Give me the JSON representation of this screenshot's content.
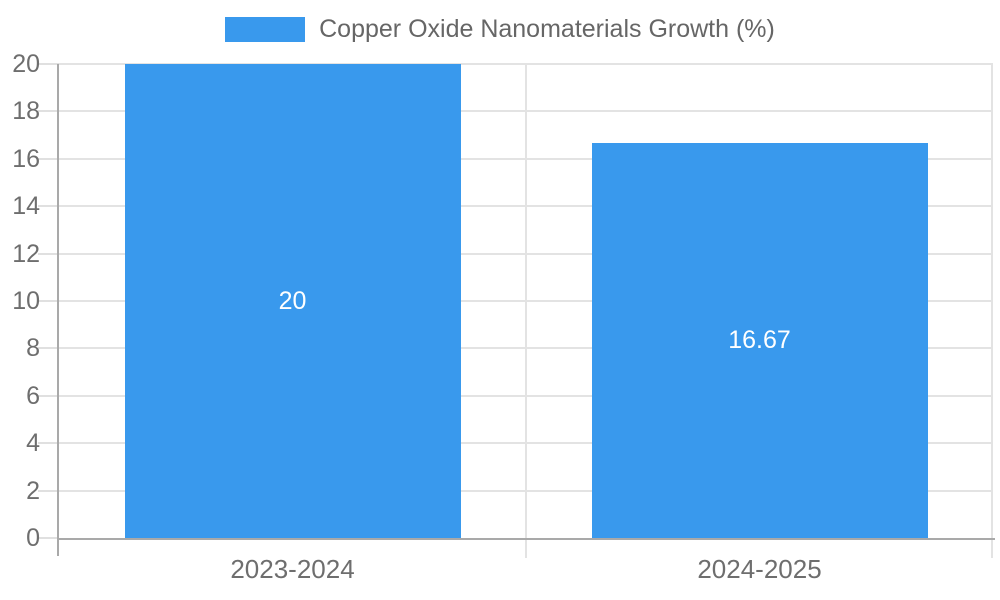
{
  "legend": {
    "label": "Copper Oxide Nanomaterials Growth (%)"
  },
  "chart_data": {
    "type": "bar",
    "title": "Copper Oxide Nanomaterials Growth (%)",
    "legend_entries": [
      "Copper Oxide Nanomaterials Growth (%)"
    ],
    "legend_position": "top-center",
    "categories": [
      "2023-2024",
      "2024-2025"
    ],
    "values": [
      20,
      16.67
    ],
    "value_labels": [
      "20",
      "16.67"
    ],
    "xlabel": "",
    "ylabel": "",
    "ylim": [
      0,
      20
    ],
    "ytick_step": 2,
    "yticks": [
      0,
      2,
      4,
      6,
      8,
      10,
      12,
      14,
      16,
      18,
      20
    ],
    "grid": true,
    "colors": {
      "bar": "#3999ED",
      "bar_value_text": "#ffffff",
      "axis_text": "#6e6e6e",
      "legend_text": "#666666",
      "gridline": "#e3e3e3",
      "tick": "#e0e0e0",
      "axis_line": "#a9a9a9",
      "background": "#ffffff"
    }
  }
}
